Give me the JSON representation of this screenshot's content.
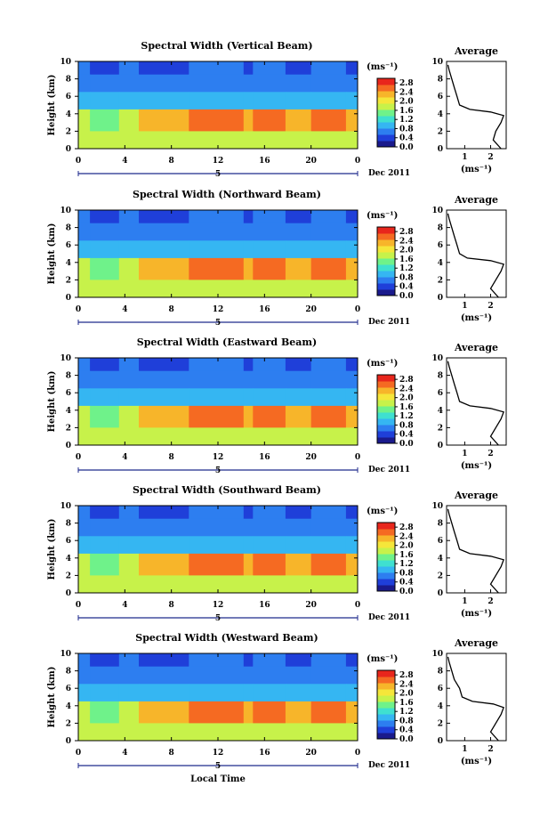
{
  "chart_data": {
    "type": "heatmap",
    "shared": {
      "ylabel": "Height (km)",
      "xlabel": "Local Time",
      "x_ticks": [
        "0",
        "4",
        "8",
        "12",
        "16",
        "20",
        "0"
      ],
      "y_ticks": [
        "0",
        "2",
        "4",
        "6",
        "8",
        "10"
      ],
      "xlim": [
        0,
        24
      ],
      "ylim": [
        0,
        10
      ],
      "date_label": "Dec 2011",
      "day_marker": "5",
      "colorbar_unit": "(ms⁻¹)",
      "colorbar_ticks": [
        "0.0",
        "0.4",
        "0.8",
        "1.2",
        "1.6",
        "2.0",
        "2.4",
        "2.8"
      ],
      "colorbar_range": [
        0,
        3.0
      ],
      "avg_title": "Average",
      "avg_xlabel": "(ms⁻¹)",
      "avg_x_ticks": [
        "1",
        "2"
      ],
      "avg_xlim": [
        0.3,
        2.6
      ],
      "colormap": [
        "#1a1a8c",
        "#1f3fd9",
        "#2d7ef0",
        "#35b6f2",
        "#3fe0d0",
        "#6ff28a",
        "#c7f24a",
        "#f5e63a",
        "#f7b52a",
        "#f56a22",
        "#e8261c"
      ]
    },
    "panels": [
      {
        "title": "Spectral Width (Vertical Beam)",
        "time_blocks_h": [
          0,
          1,
          3.5,
          5.2,
          9.5,
          14.2,
          15,
          17.8,
          20,
          23,
          24
        ],
        "layers": [
          {
            "top_km": 10.0,
            "bottom_km": 8.5,
            "mean": 0.5
          },
          {
            "top_km": 8.5,
            "bottom_km": 6.5,
            "mean": 0.6
          },
          {
            "top_km": 6.5,
            "bottom_km": 4.5,
            "mean": 0.9
          },
          {
            "top_km": 4.5,
            "bottom_km": 2.0,
            "mean": 2.6
          },
          {
            "top_km": 2.0,
            "bottom_km": 0.0,
            "mean": 1.9
          }
        ],
        "average_profile": {
          "height_km": [
            0.0,
            1.0,
            2.0,
            3.0,
            3.8,
            4.2,
            4.5,
            5.0,
            6.0,
            7.0,
            8.0,
            9.0,
            9.6
          ],
          "width_ms": [
            2.4,
            2.1,
            2.2,
            2.4,
            2.5,
            2.0,
            1.2,
            0.8,
            0.7,
            0.6,
            0.5,
            0.4,
            0.35
          ]
        }
      },
      {
        "title": "Spectral Width (Northward Beam)",
        "time_blocks_h": [
          0,
          1,
          3.5,
          5.2,
          9.5,
          14.2,
          15,
          17.8,
          20,
          23,
          24
        ],
        "layers": [
          {
            "top_km": 10.0,
            "bottom_km": 8.5,
            "mean": 0.5
          },
          {
            "top_km": 8.5,
            "bottom_km": 6.5,
            "mean": 0.6
          },
          {
            "top_km": 6.5,
            "bottom_km": 4.5,
            "mean": 0.9
          },
          {
            "top_km": 4.5,
            "bottom_km": 2.0,
            "mean": 2.6
          },
          {
            "top_km": 2.0,
            "bottom_km": 0.0,
            "mean": 1.9
          }
        ],
        "average_profile": {
          "height_km": [
            0.0,
            1.0,
            2.0,
            3.0,
            3.8,
            4.2,
            4.5,
            5.0,
            6.0,
            7.0,
            8.0,
            9.0,
            9.6
          ],
          "width_ms": [
            2.3,
            2.0,
            2.2,
            2.4,
            2.5,
            2.0,
            1.1,
            0.8,
            0.7,
            0.6,
            0.5,
            0.4,
            0.35
          ]
        }
      },
      {
        "title": "Spectral Width (Eastward Beam)",
        "time_blocks_h": [
          0,
          1,
          3.5,
          5.2,
          9.5,
          14.2,
          15,
          17.8,
          20,
          23,
          24
        ],
        "layers": [
          {
            "top_km": 10.0,
            "bottom_km": 8.5,
            "mean": 0.5
          },
          {
            "top_km": 8.5,
            "bottom_km": 6.5,
            "mean": 0.6
          },
          {
            "top_km": 6.5,
            "bottom_km": 4.5,
            "mean": 0.9
          },
          {
            "top_km": 4.5,
            "bottom_km": 2.0,
            "mean": 2.6
          },
          {
            "top_km": 2.0,
            "bottom_km": 0.0,
            "mean": 1.9
          }
        ],
        "average_profile": {
          "height_km": [
            0.0,
            1.0,
            2.0,
            3.0,
            3.8,
            4.2,
            4.5,
            5.0,
            6.0,
            7.0,
            8.0,
            9.0,
            9.6
          ],
          "width_ms": [
            2.3,
            2.0,
            2.2,
            2.4,
            2.5,
            2.0,
            1.2,
            0.8,
            0.7,
            0.6,
            0.5,
            0.4,
            0.35
          ]
        }
      },
      {
        "title": "Spectral Width (Southward Beam)",
        "time_blocks_h": [
          0,
          1,
          3.5,
          5.2,
          9.5,
          14.2,
          15,
          17.8,
          20,
          23,
          24
        ],
        "layers": [
          {
            "top_km": 10.0,
            "bottom_km": 8.5,
            "mean": 0.5
          },
          {
            "top_km": 8.5,
            "bottom_km": 6.5,
            "mean": 0.6
          },
          {
            "top_km": 6.5,
            "bottom_km": 4.5,
            "mean": 0.9
          },
          {
            "top_km": 4.5,
            "bottom_km": 2.0,
            "mean": 2.6
          },
          {
            "top_km": 2.0,
            "bottom_km": 0.0,
            "mean": 1.9
          }
        ],
        "average_profile": {
          "height_km": [
            0.0,
            1.0,
            2.0,
            3.0,
            3.8,
            4.2,
            4.5,
            5.0,
            6.0,
            7.0,
            8.0,
            9.0,
            9.6
          ],
          "width_ms": [
            2.3,
            2.0,
            2.2,
            2.4,
            2.5,
            2.0,
            1.2,
            0.8,
            0.7,
            0.6,
            0.5,
            0.4,
            0.35
          ]
        }
      },
      {
        "title": "Spectral Width (Westward Beam)",
        "time_blocks_h": [
          0,
          1,
          3.5,
          5.2,
          9.5,
          14.2,
          15,
          17.8,
          20,
          23,
          24
        ],
        "layers": [
          {
            "top_km": 10.0,
            "bottom_km": 8.5,
            "mean": 0.5
          },
          {
            "top_km": 8.5,
            "bottom_km": 6.5,
            "mean": 0.7
          },
          {
            "top_km": 6.5,
            "bottom_km": 4.5,
            "mean": 1.0
          },
          {
            "top_km": 4.5,
            "bottom_km": 2.0,
            "mean": 2.6
          },
          {
            "top_km": 2.0,
            "bottom_km": 0.0,
            "mean": 1.9
          }
        ],
        "average_profile": {
          "height_km": [
            0.0,
            1.0,
            2.0,
            3.0,
            3.8,
            4.2,
            4.5,
            5.0,
            6.0,
            7.0,
            8.0,
            9.0,
            9.6
          ],
          "width_ms": [
            2.3,
            2.0,
            2.2,
            2.4,
            2.5,
            2.1,
            1.3,
            0.9,
            0.8,
            0.6,
            0.5,
            0.4,
            0.35
          ]
        }
      }
    ]
  }
}
